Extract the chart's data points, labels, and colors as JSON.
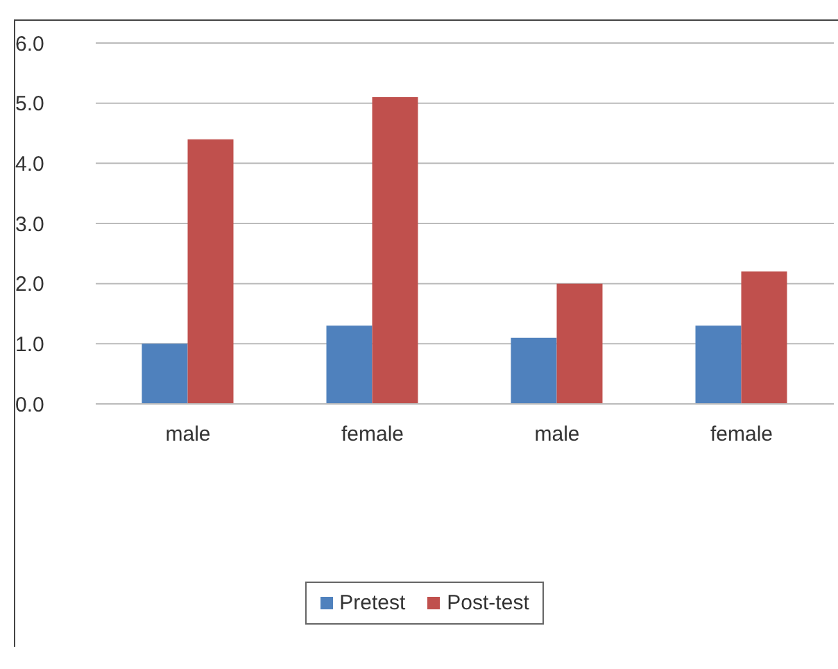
{
  "chart_data": {
    "type": "bar",
    "categories": [
      "male",
      "female",
      "male",
      "female"
    ],
    "series": [
      {
        "name": "Pretest",
        "color": "#4f81bd",
        "values": [
          1.0,
          1.3,
          1.1,
          1.3
        ]
      },
      {
        "name": "Post-test",
        "color": "#c0504d",
        "values": [
          4.4,
          5.1,
          2.0,
          2.2
        ]
      }
    ],
    "ylim": [
      0,
      6
    ],
    "yticks": [
      {
        "value": 0,
        "label": "0.0"
      },
      {
        "value": 1,
        "label": "1.0"
      },
      {
        "value": 2,
        "label": "2.0"
      },
      {
        "value": 3,
        "label": "3.0"
      },
      {
        "value": 4,
        "label": "4.0"
      },
      {
        "value": 5,
        "label": "5.0"
      },
      {
        "value": 6,
        "label": "6.0"
      }
    ],
    "grid": "y",
    "legend": "bottom"
  }
}
